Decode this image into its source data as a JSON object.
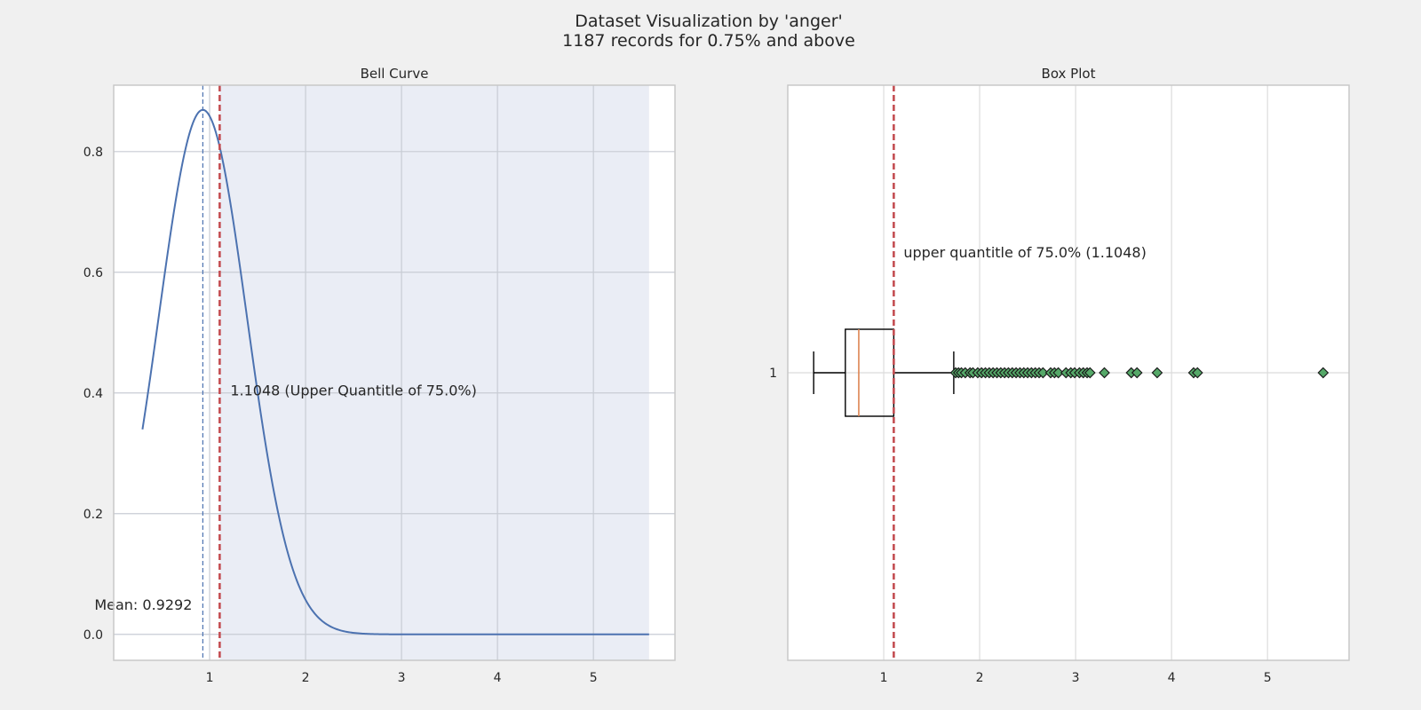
{
  "figure": {
    "title_line1": "Dataset Visualization by 'anger'",
    "title_line2": "1187 records for 0.75% and above"
  },
  "colors": {
    "figure_bg": "#f0f0f0",
    "axes_bg": "#ffffff",
    "shaded_region": "#eaedf5",
    "grid": "#c8ccd4",
    "curve": "#4c72b0",
    "mean_line": "#4c72b0",
    "quantile_line": "#c44e52",
    "median": "#dd8452",
    "outlier_fill": "#55a868",
    "box_edge": "#000000"
  },
  "chart_data": [
    {
      "type": "line",
      "subplot_title": "Bell Curve",
      "series": [
        {
          "distribution": "normal",
          "mean": 0.9292,
          "std": 0.459,
          "x_start": 0.3,
          "x_end": 5.58
        }
      ],
      "shaded_span": [
        1.1048,
        5.58
      ],
      "vlines": [
        {
          "role": "mean",
          "x": 0.9292,
          "style": "dashed"
        },
        {
          "role": "upper_quantile",
          "x": 1.1048,
          "style": "dashed-bold"
        }
      ],
      "annotations": [
        {
          "role": "mean",
          "text": "Mean: 0.9292",
          "x": 0.9292,
          "y": 0.05
        },
        {
          "role": "quantile",
          "text": "1.1048 (Upper Quantitle of 75.0%)",
          "x": 1.1048,
          "y": 0.405
        }
      ],
      "x_ticks": [
        "1",
        "2",
        "3",
        "4",
        "5"
      ],
      "y_ticks": [
        "0.0",
        "0.2",
        "0.4",
        "0.6",
        "0.8"
      ],
      "xlim": [
        0.0,
        5.85
      ],
      "ylim": [
        -0.043,
        0.91
      ],
      "grid": true
    },
    {
      "type": "box",
      "subplot_title": "Box Plot",
      "category_label": "1",
      "box": {
        "whisker_low": 0.27,
        "q1": 0.6,
        "median": 0.74,
        "q3": 1.1048,
        "whisker_high": 1.73
      },
      "outliers": [
        1.75,
        1.78,
        1.81,
        1.85,
        1.9,
        1.93,
        1.98,
        2.02,
        2.06,
        2.1,
        2.14,
        2.18,
        2.22,
        2.26,
        2.3,
        2.34,
        2.38,
        2.42,
        2.46,
        2.5,
        2.54,
        2.58,
        2.62,
        2.66,
        2.74,
        2.78,
        2.82,
        2.9,
        2.95,
        2.99,
        3.04,
        3.08,
        3.12,
        3.15,
        3.3,
        3.58,
        3.64,
        3.85,
        4.23,
        4.27,
        5.58
      ],
      "vline": {
        "role": "upper_quantile",
        "x": 1.1048
      },
      "annotation": {
        "text": "upper quantitle of 75.0% (1.1048)",
        "x": 1.1048
      },
      "x_ticks": [
        "1",
        "2",
        "3",
        "4",
        "5"
      ],
      "xlim": [
        0.0,
        5.85
      ],
      "grid": true
    }
  ]
}
